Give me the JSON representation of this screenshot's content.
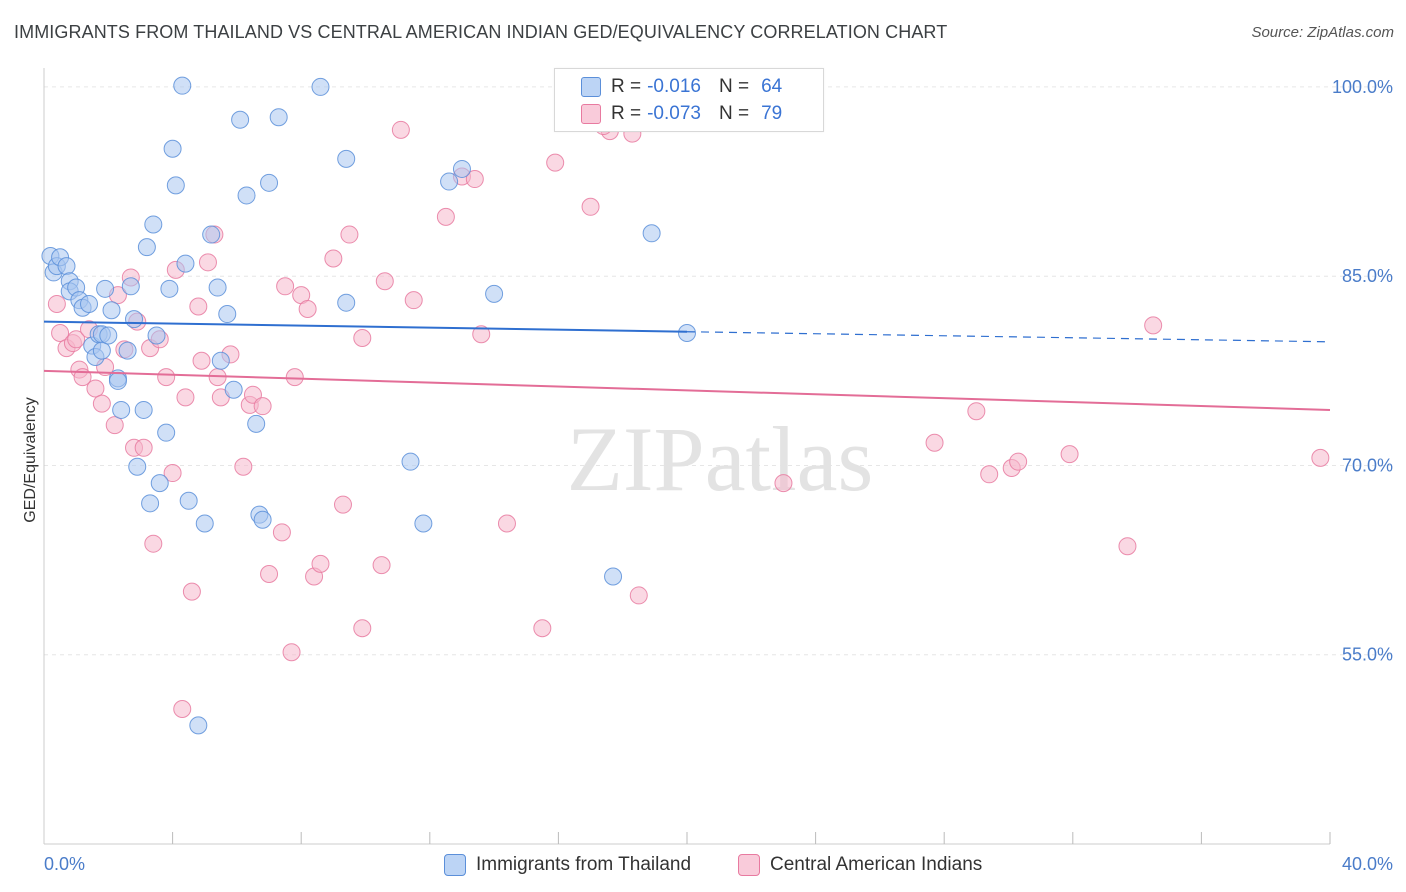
{
  "title": "IMMIGRANTS FROM THAILAND VS CENTRAL AMERICAN INDIAN GED/EQUIVALENCY CORRELATION CHART",
  "source": "Source: ZipAtlas.com",
  "watermark": "ZIPatlas",
  "legend": {
    "rows": [
      {
        "r_label": "R =",
        "r_value": "-0.016",
        "n_label": "N =",
        "n_value": "64",
        "color": "#5b8fd9"
      },
      {
        "r_label": "R =",
        "r_value": "-0.073",
        "n_label": "N =",
        "n_value": "79",
        "color": "#e87aa0"
      }
    ]
  },
  "colors": {
    "series1_fill": "#a9c7f0",
    "series1_stroke": "#5b8fd9",
    "series1_line": "#2f6fd0",
    "series2_fill": "#f6b8cc",
    "series2_stroke": "#e87aa0",
    "series2_line": "#e36d97",
    "tick_label": "#4a7cc9",
    "grid": "#e6e6e6"
  },
  "chart_data": {
    "type": "scatter",
    "xlabel": "",
    "ylabel": "GED/Equivalency",
    "xlim": [
      0,
      40
    ],
    "ylim": [
      40,
      101.5
    ],
    "x_tick_labels": [
      {
        "value": 0,
        "label": "0.0%"
      },
      {
        "value": 40,
        "label": "40.0%"
      }
    ],
    "x_minor_ticks": [
      4,
      8,
      12,
      16,
      20,
      24,
      28,
      32,
      36,
      40
    ],
    "y_ticks": [
      {
        "value": 100,
        "label": "100.0%"
      },
      {
        "value": 85,
        "label": "85.0%"
      },
      {
        "value": 70,
        "label": "70.0%"
      },
      {
        "value": 55,
        "label": "55.0%"
      }
    ],
    "grid": true,
    "legend_position": "bottom",
    "series": [
      {
        "name": "Immigrants from Thailand",
        "trend": {
          "x0": 0,
          "y0": 81.4,
          "x1": 20,
          "y1": 80.6,
          "dash_x1": 40,
          "dash_y1": 79.8
        },
        "points": [
          [
            0.2,
            86.6
          ],
          [
            0.3,
            85.3
          ],
          [
            0.4,
            85.8
          ],
          [
            0.5,
            86.5
          ],
          [
            0.7,
            85.8
          ],
          [
            0.8,
            84.6
          ],
          [
            0.8,
            83.8
          ],
          [
            1.0,
            84.1
          ],
          [
            1.1,
            83.1
          ],
          [
            1.2,
            82.5
          ],
          [
            1.4,
            82.8
          ],
          [
            1.5,
            79.5
          ],
          [
            1.6,
            78.6
          ],
          [
            1.7,
            80.4
          ],
          [
            1.8,
            80.4
          ],
          [
            1.8,
            79.1
          ],
          [
            1.9,
            84.0
          ],
          [
            2.0,
            80.3
          ],
          [
            2.1,
            82.3
          ],
          [
            2.3,
            76.9
          ],
          [
            2.3,
            76.7
          ],
          [
            2.4,
            74.4
          ],
          [
            2.6,
            79.1
          ],
          [
            2.7,
            84.2
          ],
          [
            2.8,
            81.6
          ],
          [
            2.9,
            69.9
          ],
          [
            3.1,
            74.4
          ],
          [
            3.2,
            87.3
          ],
          [
            3.3,
            67.0
          ],
          [
            3.4,
            89.1
          ],
          [
            3.5,
            80.3
          ],
          [
            3.6,
            68.6
          ],
          [
            3.8,
            72.6
          ],
          [
            3.9,
            84.0
          ],
          [
            4.0,
            95.1
          ],
          [
            4.1,
            92.2
          ],
          [
            4.3,
            100.1
          ],
          [
            4.4,
            86.0
          ],
          [
            4.5,
            67.2
          ],
          [
            4.8,
            49.4
          ],
          [
            5.0,
            65.4
          ],
          [
            5.2,
            88.3
          ],
          [
            5.4,
            84.1
          ],
          [
            5.5,
            78.3
          ],
          [
            5.7,
            82.0
          ],
          [
            5.9,
            76.0
          ],
          [
            6.1,
            97.4
          ],
          [
            6.3,
            91.4
          ],
          [
            6.6,
            73.3
          ],
          [
            6.7,
            66.1
          ],
          [
            6.8,
            65.7
          ],
          [
            7.0,
            92.4
          ],
          [
            7.3,
            97.6
          ],
          [
            8.6,
            100.0
          ],
          [
            9.4,
            94.3
          ],
          [
            9.4,
            82.9
          ],
          [
            11.4,
            70.3
          ],
          [
            11.8,
            65.4
          ],
          [
            12.6,
            92.5
          ],
          [
            13.0,
            93.5
          ],
          [
            14.0,
            83.6
          ],
          [
            17.7,
            61.2
          ],
          [
            18.9,
            88.4
          ],
          [
            20.0,
            80.5
          ]
        ]
      },
      {
        "name": "Central American Indians",
        "trend": {
          "x0": 0,
          "y0": 77.5,
          "x1": 40,
          "y1": 74.4
        },
        "points": [
          [
            0.4,
            82.8
          ],
          [
            0.5,
            80.5
          ],
          [
            0.7,
            79.3
          ],
          [
            0.9,
            79.7
          ],
          [
            1.0,
            80.0
          ],
          [
            1.1,
            77.6
          ],
          [
            1.2,
            77.0
          ],
          [
            1.4,
            80.8
          ],
          [
            1.6,
            76.1
          ],
          [
            1.8,
            74.9
          ],
          [
            1.9,
            77.8
          ],
          [
            2.2,
            73.2
          ],
          [
            2.3,
            83.5
          ],
          [
            2.5,
            79.2
          ],
          [
            2.7,
            84.9
          ],
          [
            2.8,
            71.4
          ],
          [
            2.9,
            81.4
          ],
          [
            3.1,
            71.4
          ],
          [
            3.3,
            79.3
          ],
          [
            3.4,
            63.8
          ],
          [
            3.6,
            80.0
          ],
          [
            3.8,
            77.0
          ],
          [
            4.0,
            69.4
          ],
          [
            4.1,
            85.5
          ],
          [
            4.3,
            50.7
          ],
          [
            4.4,
            75.4
          ],
          [
            4.6,
            60.0
          ],
          [
            4.8,
            82.6
          ],
          [
            4.9,
            78.3
          ],
          [
            5.1,
            86.1
          ],
          [
            5.3,
            88.3
          ],
          [
            5.4,
            77.0
          ],
          [
            5.5,
            75.4
          ],
          [
            5.8,
            78.8
          ],
          [
            6.2,
            69.9
          ],
          [
            6.4,
            74.8
          ],
          [
            6.5,
            75.6
          ],
          [
            6.8,
            74.7
          ],
          [
            7.0,
            61.4
          ],
          [
            7.4,
            64.7
          ],
          [
            7.5,
            84.2
          ],
          [
            7.7,
            55.2
          ],
          [
            7.8,
            77.0
          ],
          [
            8.0,
            83.5
          ],
          [
            8.2,
            82.4
          ],
          [
            8.4,
            61.2
          ],
          [
            8.6,
            62.2
          ],
          [
            9.0,
            86.4
          ],
          [
            9.3,
            66.9
          ],
          [
            9.5,
            88.3
          ],
          [
            9.9,
            80.1
          ],
          [
            9.9,
            57.1
          ],
          [
            10.5,
            62.1
          ],
          [
            10.6,
            84.6
          ],
          [
            11.1,
            96.6
          ],
          [
            11.5,
            83.1
          ],
          [
            12.5,
            89.7
          ],
          [
            13.0,
            92.9
          ],
          [
            13.4,
            92.7
          ],
          [
            13.6,
            80.4
          ],
          [
            14.4,
            65.4
          ],
          [
            15.5,
            57.1
          ],
          [
            15.9,
            94.0
          ],
          [
            17.0,
            90.5
          ],
          [
            17.6,
            96.5
          ],
          [
            18.3,
            96.3
          ],
          [
            18.5,
            59.7
          ],
          [
            22.3,
            100.0
          ],
          [
            23.0,
            68.6
          ],
          [
            27.7,
            71.8
          ],
          [
            29.0,
            74.3
          ],
          [
            29.4,
            69.3
          ],
          [
            30.1,
            69.8
          ],
          [
            30.3,
            70.3
          ],
          [
            31.9,
            70.9
          ],
          [
            33.7,
            63.6
          ],
          [
            34.5,
            81.1
          ],
          [
            39.7,
            70.6
          ],
          [
            17.4,
            96.9
          ]
        ]
      }
    ]
  }
}
